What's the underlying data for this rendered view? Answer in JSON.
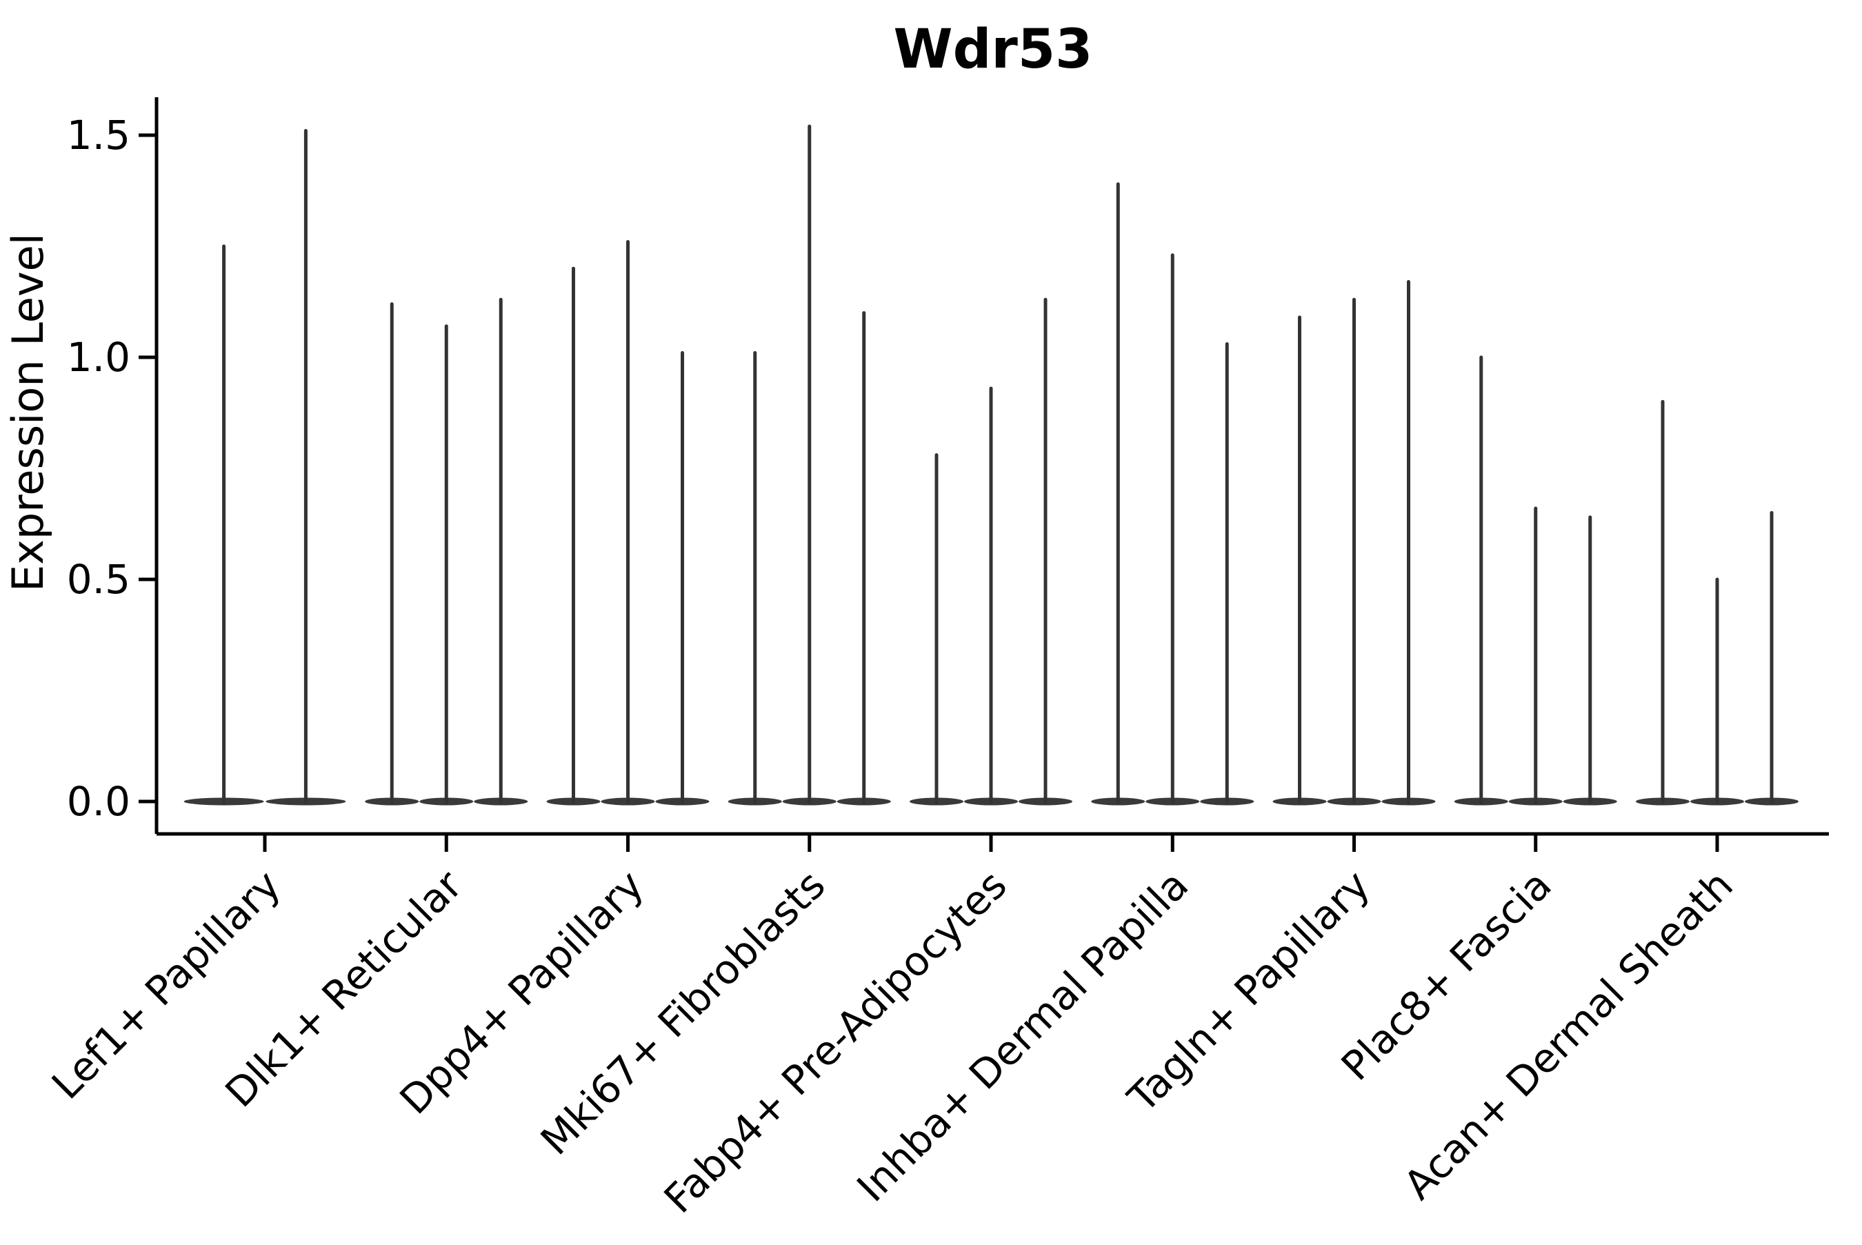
{
  "title": "Wdr53",
  "y_axis": {
    "label": "Expression Level",
    "tick_labels": [
      "0.0",
      "0.5",
      "1.0",
      "1.5"
    ]
  },
  "colors": {
    "violin": "#333333",
    "violin_body": "#3a3a3a",
    "axis": "#000000",
    "text": "#000000",
    "background": "#ffffff"
  },
  "chart_data": {
    "type": "violin",
    "title": "Wdr53",
    "xlabel": "",
    "ylabel": "Expression Level",
    "ylim": [
      0,
      1.66
    ],
    "y_tick_values": [
      0,
      0.5,
      1.0,
      1.5
    ],
    "y_tick_labels": [
      "0.0",
      "0.5",
      "1.0",
      "1.5"
    ],
    "grid": false,
    "legend": false,
    "description": "Single-cell expression violin plot. Each category contains 2-3 narrow violins; density mass sits at 0 (wide flat base) with a thin tail reaching the listed maximum expression value.",
    "categories": [
      "Lef1+ Papillary",
      "Dlk1+ Reticular",
      "Dpp4+ Papillary",
      "Mki67+ Fibroblasts",
      "Fabp4+ Pre-Adipocytes",
      "Inhba+ Dermal Papilla",
      "Tagln+ Papillary",
      "Plac8+ Fascia",
      "Acan+ Dermal Sheath"
    ],
    "groups": [
      {
        "label": "Lef1+ Papillary",
        "violin_peaks": [
          1.25,
          1.51
        ]
      },
      {
        "label": "Dlk1+ Reticular",
        "violin_peaks": [
          1.12,
          1.07,
          1.13
        ]
      },
      {
        "label": "Dpp4+ Papillary",
        "violin_peaks": [
          1.2,
          1.26,
          1.01
        ]
      },
      {
        "label": "Mki67+ Fibroblasts",
        "violin_peaks": [
          1.01,
          1.52,
          1.1
        ]
      },
      {
        "label": "Fabp4+ Pre-Adipocytes",
        "violin_peaks": [
          0.78,
          0.93,
          1.13
        ]
      },
      {
        "label": "Inhba+ Dermal Papilla",
        "violin_peaks": [
          1.39,
          1.23,
          1.03
        ]
      },
      {
        "label": "Tagln+ Papillary",
        "violin_peaks": [
          1.09,
          1.13,
          1.17
        ]
      },
      {
        "label": "Plac8+ Fascia",
        "violin_peaks": [
          1.0,
          0.66,
          0.64
        ]
      },
      {
        "label": "Acan+ Dermal Sheath",
        "violin_peaks": [
          0.9,
          0.5,
          0.65
        ]
      }
    ]
  }
}
